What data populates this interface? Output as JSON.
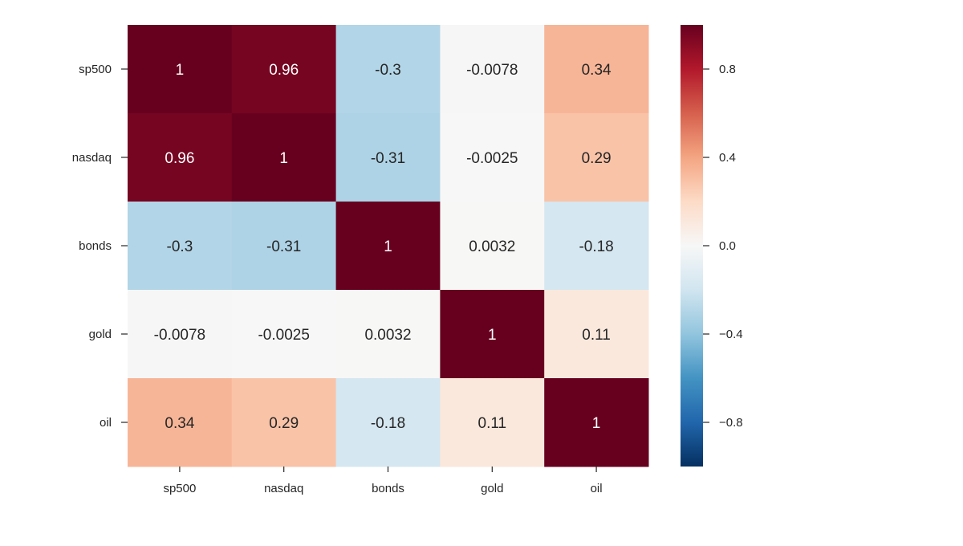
{
  "chart_data": {
    "type": "heatmap",
    "title": "",
    "xlabel": "",
    "ylabel": "",
    "x_categories": [
      "sp500",
      "nasdaq",
      "bonds",
      "gold",
      "oil"
    ],
    "y_categories": [
      "sp500",
      "nasdaq",
      "bonds",
      "gold",
      "oil"
    ],
    "values": [
      [
        1,
        0.96,
        -0.3,
        -0.0078,
        0.34
      ],
      [
        0.96,
        1,
        -0.31,
        -0.0025,
        0.29
      ],
      [
        -0.3,
        -0.31,
        1,
        0.0032,
        -0.18
      ],
      [
        -0.0078,
        -0.0025,
        0.0032,
        1,
        0.11
      ],
      [
        0.34,
        0.29,
        -0.18,
        0.11,
        1
      ]
    ],
    "annotations": [
      [
        "1",
        "0.96",
        "-0.3",
        "-0.0078",
        "0.34"
      ],
      [
        "0.96",
        "1",
        "-0.31",
        "-0.0025",
        "0.29"
      ],
      [
        "-0.3",
        "-0.31",
        "1",
        "0.0032",
        "-0.18"
      ],
      [
        "-0.0078",
        "-0.0025",
        "0.0032",
        "1",
        "0.11"
      ],
      [
        "0.34",
        "0.29",
        "-0.18",
        "0.11",
        "1"
      ]
    ],
    "colormap": "RdBu_r",
    "vmin": -1,
    "vmax": 1,
    "colorbar": {
      "ticks": [
        0.8,
        0.4,
        0.0,
        -0.4,
        -0.8
      ],
      "tick_labels": [
        "0.8",
        "0.4",
        "0.0",
        "−0.4",
        "−0.8"
      ]
    },
    "colors": [
      "#053061",
      "#2166ac",
      "#4393c3",
      "#92c5de",
      "#d1e5f0",
      "#f7f7f7",
      "#fddbc7",
      "#f4a582",
      "#d6604d",
      "#b2182b",
      "#67001f"
    ],
    "grid": false,
    "legend": "colorbar-right"
  }
}
